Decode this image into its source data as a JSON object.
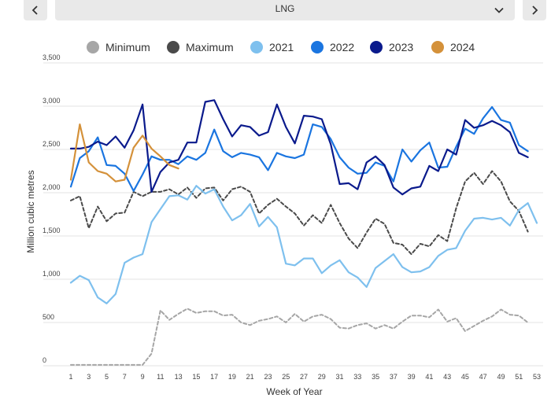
{
  "selector": {
    "value": "LNG"
  },
  "chart_data": {
    "type": "line",
    "title": "",
    "xlabel": "Week of Year",
    "ylabel": "Million cubic metres",
    "xlim": [
      1,
      53
    ],
    "ylim": [
      0,
      3500
    ],
    "x_ticks": [
      1,
      3,
      5,
      7,
      9,
      11,
      13,
      15,
      17,
      19,
      21,
      23,
      25,
      27,
      29,
      31,
      33,
      35,
      37,
      39,
      41,
      43,
      45,
      47,
      49,
      51,
      53
    ],
    "y_ticks": [
      0,
      500,
      1000,
      1500,
      2000,
      2500,
      3000,
      3500
    ],
    "y_tick_labels": [
      "0",
      "500",
      "1,000",
      "1,500",
      "2,000",
      "2,500",
      "3,000",
      "3,500"
    ],
    "grid": "horizontal",
    "legend_position": "top",
    "series": [
      {
        "name": "Minimum",
        "color": "#a6a6a6",
        "style": "dashed",
        "x": [
          1,
          2,
          3,
          4,
          5,
          6,
          7,
          8,
          9,
          10,
          11,
          12,
          13,
          14,
          15,
          16,
          17,
          18,
          19,
          20,
          21,
          22,
          23,
          24,
          25,
          26,
          27,
          28,
          29,
          30,
          31,
          32,
          33,
          34,
          35,
          36,
          37,
          38,
          39,
          40,
          41,
          42,
          43,
          44,
          45,
          46,
          47,
          48,
          49,
          50,
          51,
          52
        ],
        "y": [
          10,
          10,
          10,
          10,
          10,
          10,
          10,
          10,
          10,
          140,
          640,
          530,
          600,
          660,
          610,
          630,
          630,
          580,
          590,
          500,
          470,
          520,
          540,
          570,
          500,
          600,
          510,
          570,
          590,
          540,
          440,
          430,
          470,
          490,
          430,
          470,
          430,
          510,
          580,
          580,
          560,
          650,
          510,
          550,
          400,
          460,
          520,
          570,
          650,
          590,
          580,
          500
        ]
      },
      {
        "name": "Maximum",
        "color": "#4a4a4a",
        "style": "dashed",
        "x": [
          1,
          2,
          3,
          4,
          5,
          6,
          7,
          8,
          9,
          10,
          11,
          12,
          13,
          14,
          15,
          16,
          17,
          18,
          19,
          20,
          21,
          22,
          23,
          24,
          25,
          26,
          27,
          28,
          29,
          30,
          31,
          32,
          33,
          34,
          35,
          36,
          37,
          38,
          39,
          40,
          41,
          42,
          43,
          44,
          45,
          46,
          47,
          48,
          49,
          50,
          51,
          52
        ],
        "y": [
          1910,
          1960,
          1590,
          1840,
          1670,
          1760,
          1770,
          2010,
          1960,
          2010,
          2010,
          2040,
          1980,
          2060,
          1940,
          2050,
          2060,
          1910,
          2040,
          2070,
          2010,
          1760,
          1860,
          1930,
          1840,
          1760,
          1620,
          1740,
          1650,
          1860,
          1650,
          1470,
          1360,
          1540,
          1700,
          1640,
          1420,
          1400,
          1290,
          1410,
          1380,
          1510,
          1440,
          1820,
          2130,
          2230,
          2100,
          2250,
          2130,
          1900,
          1790,
          1550
        ]
      },
      {
        "name": "2021",
        "color": "#7ec0ee",
        "style": "solid",
        "x": [
          1,
          2,
          3,
          4,
          5,
          6,
          7,
          8,
          9,
          10,
          11,
          12,
          13,
          14,
          15,
          16,
          17,
          18,
          19,
          20,
          21,
          22,
          23,
          24,
          25,
          26,
          27,
          28,
          29,
          30,
          31,
          32,
          33,
          34,
          35,
          36,
          37,
          38,
          39,
          40,
          41,
          42,
          43,
          44,
          45,
          46,
          47,
          48,
          49,
          50,
          51,
          52,
          53
        ],
        "y": [
          960,
          1040,
          990,
          790,
          720,
          830,
          1190,
          1250,
          1290,
          1660,
          1810,
          1960,
          1970,
          1920,
          2080,
          1990,
          2040,
          1840,
          1680,
          1740,
          1870,
          1610,
          1720,
          1600,
          1180,
          1160,
          1240,
          1240,
          1070,
          1160,
          1220,
          1080,
          1020,
          910,
          1130,
          1210,
          1290,
          1140,
          1080,
          1090,
          1140,
          1270,
          1340,
          1360,
          1560,
          1700,
          1710,
          1690,
          1710,
          1620,
          1800,
          1880,
          1650
        ]
      },
      {
        "name": "2022",
        "color": "#1a75e0",
        "style": "solid",
        "x": [
          1,
          2,
          3,
          4,
          5,
          6,
          7,
          8,
          9,
          10,
          11,
          12,
          13,
          14,
          15,
          16,
          17,
          18,
          19,
          20,
          21,
          22,
          23,
          24,
          25,
          26,
          27,
          28,
          29,
          30,
          31,
          32,
          33,
          34,
          35,
          36,
          37,
          38,
          39,
          40,
          41,
          42,
          43,
          44,
          45,
          46,
          47,
          48,
          49,
          50,
          51,
          52
        ],
        "y": [
          2070,
          2400,
          2480,
          2640,
          2320,
          2310,
          2220,
          2020,
          2210,
          2420,
          2380,
          2380,
          2330,
          2420,
          2380,
          2460,
          2730,
          2480,
          2410,
          2460,
          2440,
          2410,
          2260,
          2460,
          2420,
          2400,
          2440,
          2790,
          2760,
          2620,
          2410,
          2290,
          2220,
          2230,
          2350,
          2310,
          2130,
          2500,
          2360,
          2490,
          2580,
          2290,
          2300,
          2530,
          2740,
          2680,
          2860,
          2990,
          2840,
          2810,
          2550,
          2480
        ]
      },
      {
        "name": "2023",
        "color": "#0a1a8c",
        "style": "solid",
        "x": [
          1,
          2,
          3,
          4,
          5,
          6,
          7,
          8,
          9,
          10,
          11,
          12,
          13,
          14,
          15,
          16,
          17,
          18,
          19,
          20,
          21,
          22,
          23,
          24,
          25,
          26,
          27,
          28,
          29,
          30,
          31,
          32,
          33,
          34,
          35,
          36,
          37,
          38,
          39,
          40,
          41,
          42,
          43,
          44,
          45,
          46,
          47,
          48,
          49,
          50,
          51,
          52
        ],
        "y": [
          2510,
          2510,
          2530,
          2590,
          2550,
          2650,
          2520,
          2720,
          3020,
          2010,
          2240,
          2350,
          2380,
          2580,
          2580,
          3050,
          3070,
          2850,
          2650,
          2780,
          2760,
          2660,
          2700,
          3020,
          2760,
          2570,
          2890,
          2880,
          2850,
          2560,
          2100,
          2110,
          2040,
          2350,
          2420,
          2320,
          2060,
          1980,
          2050,
          2070,
          2310,
          2250,
          2500,
          2440,
          2840,
          2750,
          2780,
          2830,
          2780,
          2700,
          2460,
          2410
        ]
      },
      {
        "name": "2024",
        "color": "#d4913a",
        "style": "solid",
        "x": [
          1,
          2,
          3,
          4,
          5,
          6,
          7,
          8,
          9,
          10,
          11,
          12,
          13
        ],
        "y": [
          2150,
          2790,
          2350,
          2250,
          2220,
          2130,
          2150,
          2520,
          2660,
          2510,
          2420,
          2320,
          2280
        ]
      }
    ]
  }
}
